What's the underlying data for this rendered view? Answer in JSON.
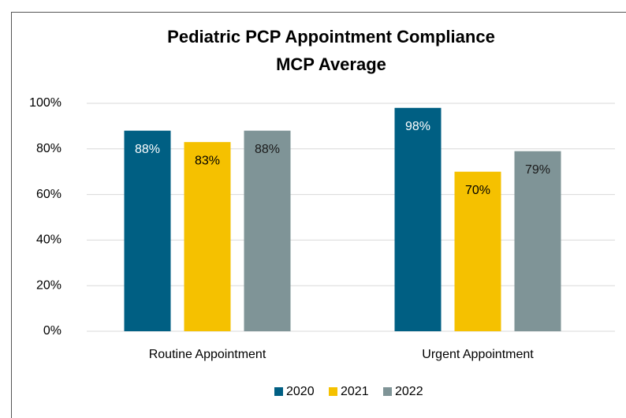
{
  "chart_data": {
    "type": "bar",
    "title": "Pediatric PCP Appointment Compliance",
    "subtitle": "MCP Average",
    "categories": [
      "Routine Appointment",
      "Urgent Appointment"
    ],
    "series": [
      {
        "name": "2020",
        "color": "#005f83",
        "values": [
          88,
          98
        ],
        "value_labels": [
          "88%",
          "98%"
        ]
      },
      {
        "name": "2021",
        "color": "#f5c100",
        "values": [
          83,
          70
        ],
        "value_labels": [
          "83%",
          "70%"
        ]
      },
      {
        "name": "2022",
        "color": "#7f9497",
        "values": [
          88,
          79
        ],
        "value_labels": [
          "88%",
          "79%"
        ]
      }
    ],
    "ylim": [
      0,
      100
    ],
    "yticks": [
      {
        "value": 0,
        "label": "0%"
      },
      {
        "value": 20,
        "label": "20%"
      },
      {
        "value": 40,
        "label": "40%"
      },
      {
        "value": 60,
        "label": "60%"
      },
      {
        "value": 80,
        "label": "80%"
      },
      {
        "value": 100,
        "label": "100%"
      }
    ],
    "grid": true,
    "legend": "bottom"
  }
}
